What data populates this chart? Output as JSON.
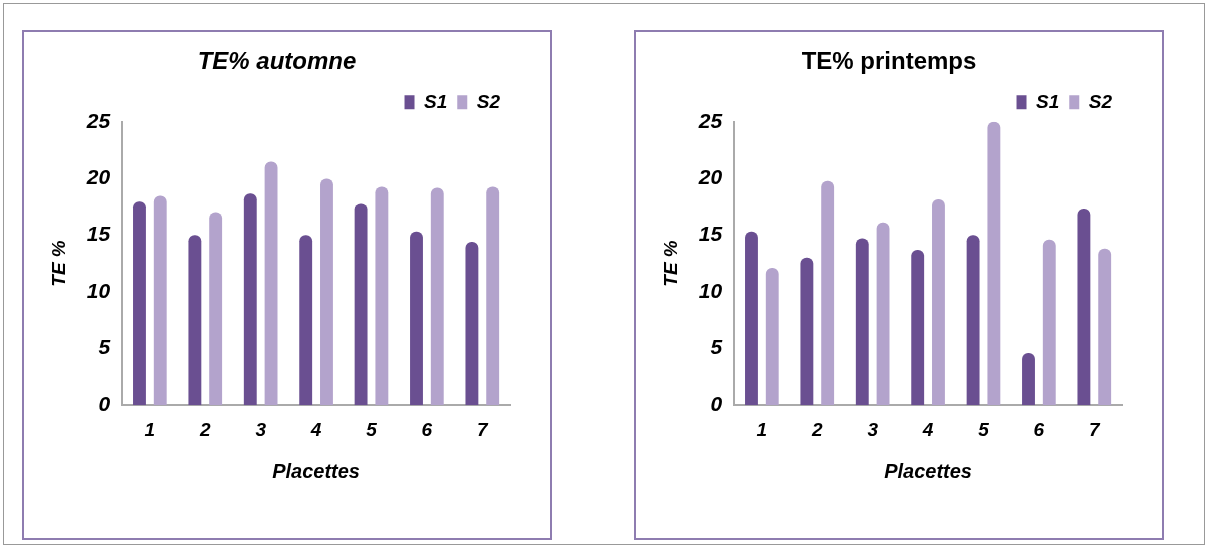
{
  "chart_data": [
    {
      "type": "bar",
      "title": "TE% automne",
      "xlabel": "Placettes",
      "ylabel": "TE %",
      "categories": [
        "1",
        "2",
        "3",
        "4",
        "5",
        "6",
        "7"
      ],
      "series": [
        {
          "name": "S1",
          "color": "#6a4f91",
          "values": [
            18,
            15,
            18.7,
            15,
            17.8,
            15.3,
            14.4
          ]
        },
        {
          "name": "S2",
          "color": "#b3a3cc",
          "values": [
            18.5,
            17,
            21.5,
            20,
            19.3,
            19.2,
            19.3
          ]
        }
      ],
      "ylim": [
        0,
        25
      ],
      "yticks": [
        0,
        5,
        10,
        15,
        20,
        25
      ],
      "grid": false,
      "legend": "top right"
    },
    {
      "type": "bar",
      "title": "TE% printemps",
      "xlabel": "Placettes",
      "ylabel": "TE %",
      "categories": [
        "1",
        "2",
        "3",
        "4",
        "5",
        "6",
        "7"
      ],
      "series": [
        {
          "name": "S1",
          "color": "#6a4f91",
          "values": [
            15.3,
            13,
            14.7,
            13.7,
            15,
            4.6,
            17.3
          ]
        },
        {
          "name": "S2",
          "color": "#b3a3cc",
          "values": [
            12.1,
            19.8,
            16.1,
            18.2,
            25,
            14.6,
            13.8
          ]
        }
      ],
      "ylim": [
        0,
        25
      ],
      "yticks": [
        0,
        5,
        10,
        15,
        20,
        25
      ],
      "grid": false,
      "legend": "top right"
    }
  ]
}
